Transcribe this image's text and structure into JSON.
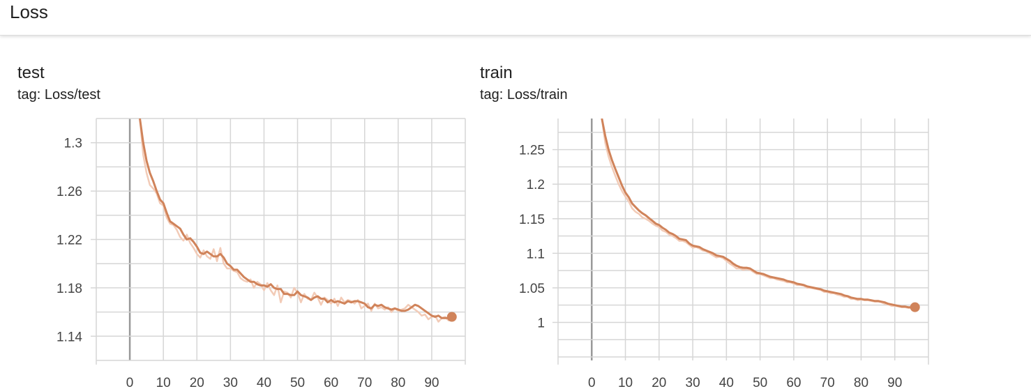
{
  "header": {
    "title": "Loss"
  },
  "colors": {
    "series": "#d0835a",
    "series_raw": "#f2cbb7",
    "grid": "#d6d6d6",
    "zero_line": "#999999"
  },
  "chart_data": [
    {
      "type": "line",
      "title": "test",
      "tag": "tag: Loss/test",
      "xlabel": "",
      "ylabel": "",
      "xlim": [
        -10,
        100
      ],
      "ylim": [
        1.12,
        1.32
      ],
      "x_ticks": [
        0,
        10,
        20,
        30,
        40,
        50,
        60,
        70,
        80,
        90
      ],
      "y_ticks": [
        1.14,
        1.18,
        1.22,
        1.26,
        1.3
      ],
      "y_tick_labels": [
        "1.14",
        "1.18",
        "1.22",
        "1.26",
        "1.3"
      ],
      "grid": true,
      "series": [
        {
          "x": [
            3,
            4,
            5,
            6,
            7,
            8,
            9,
            10,
            11,
            12,
            13,
            14,
            15,
            16,
            17,
            18,
            19,
            20,
            21,
            22,
            23,
            24,
            25,
            26,
            27,
            28,
            29,
            30,
            31,
            32,
            33,
            34,
            35,
            36,
            37,
            38,
            39,
            40,
            41,
            42,
            43,
            44,
            45,
            46,
            47,
            48,
            49,
            50,
            51,
            52,
            53,
            54,
            55,
            56,
            57,
            58,
            59,
            60,
            61,
            62,
            63,
            64,
            65,
            66,
            67,
            68,
            69,
            70,
            71,
            72,
            73,
            74,
            75,
            76,
            77,
            78,
            79,
            80,
            81,
            82,
            83,
            84,
            85,
            86,
            87,
            88,
            89,
            90,
            91,
            92,
            93,
            94,
            95,
            96
          ],
          "smoothed": [
            1.32,
            1.3,
            1.285,
            1.275,
            1.268,
            1.26,
            1.253,
            1.25,
            1.242,
            1.235,
            1.233,
            1.231,
            1.229,
            1.224,
            1.22,
            1.221,
            1.218,
            1.214,
            1.209,
            1.208,
            1.21,
            1.208,
            1.206,
            1.206,
            1.208,
            1.205,
            1.2,
            1.198,
            1.195,
            1.195,
            1.192,
            1.189,
            1.187,
            1.185,
            1.185,
            1.183,
            1.182,
            1.182,
            1.181,
            1.183,
            1.18,
            1.179,
            1.179,
            1.175,
            1.175,
            1.174,
            1.174,
            1.177,
            1.174,
            1.173,
            1.172,
            1.17,
            1.172,
            1.173,
            1.171,
            1.171,
            1.168,
            1.17,
            1.168,
            1.169,
            1.168,
            1.167,
            1.169,
            1.168,
            1.169,
            1.169,
            1.168,
            1.167,
            1.164,
            1.163,
            1.166,
            1.165,
            1.166,
            1.164,
            1.163,
            1.162,
            1.163,
            1.162,
            1.161,
            1.161,
            1.162,
            1.164,
            1.166,
            1.165,
            1.163,
            1.161,
            1.159,
            1.157,
            1.156,
            1.157,
            1.155,
            1.155,
            1.155,
            1.156
          ],
          "raw": [
            1.32,
            1.29,
            1.275,
            1.265,
            1.262,
            1.258,
            1.25,
            1.248,
            1.238,
            1.233,
            1.232,
            1.228,
            1.222,
            1.219,
            1.224,
            1.217,
            1.213,
            1.208,
            1.205,
            1.211,
            1.206,
            1.204,
            1.212,
            1.202,
            1.213,
            1.2,
            1.196,
            1.196,
            1.194,
            1.193,
            1.188,
            1.186,
            1.185,
            1.187,
            1.18,
            1.185,
            1.183,
            1.178,
            1.184,
            1.178,
            1.174,
            1.182,
            1.168,
            1.177,
            1.176,
            1.172,
            1.18,
            1.176,
            1.168,
            1.175,
            1.171,
            1.17,
            1.176,
            1.172,
            1.166,
            1.172,
            1.17,
            1.167,
            1.171,
            1.165,
            1.172,
            1.168,
            1.17,
            1.169,
            1.167,
            1.17,
            1.163,
            1.165,
            1.167,
            1.161,
            1.167,
            1.163,
            1.164,
            1.162,
            1.164,
            1.16,
            1.163,
            1.161,
            1.162,
            1.163,
            1.166,
            1.164,
            1.162,
            1.16,
            1.157,
            1.158,
            1.154,
            1.156,
            1.157,
            1.152,
            1.155,
            1.156,
            1.153,
            1.156
          ]
        }
      ]
    },
    {
      "type": "line",
      "title": "train",
      "tag": "tag: Loss/train",
      "xlabel": "",
      "ylabel": "",
      "xlim": [
        -10,
        100
      ],
      "ylim": [
        0.945,
        1.295
      ],
      "x_ticks": [
        0,
        10,
        20,
        30,
        40,
        50,
        60,
        70,
        80,
        90
      ],
      "y_ticks": [
        1.0,
        1.05,
        1.1,
        1.15,
        1.2,
        1.25
      ],
      "y_tick_labels": [
        "1",
        "1.05",
        "1.1",
        "1.15",
        "1.2",
        "1.25"
      ],
      "grid": true,
      "series": [
        {
          "x": [
            3,
            4,
            5,
            6,
            7,
            8,
            9,
            10,
            11,
            12,
            13,
            14,
            15,
            16,
            17,
            18,
            19,
            20,
            21,
            22,
            23,
            24,
            25,
            26,
            27,
            28,
            29,
            30,
            31,
            32,
            33,
            34,
            35,
            36,
            37,
            38,
            39,
            40,
            41,
            42,
            43,
            44,
            45,
            46,
            47,
            48,
            49,
            50,
            51,
            52,
            53,
            54,
            55,
            56,
            57,
            58,
            59,
            60,
            61,
            62,
            63,
            64,
            65,
            66,
            67,
            68,
            69,
            70,
            71,
            72,
            73,
            74,
            75,
            76,
            77,
            78,
            79,
            80,
            81,
            82,
            83,
            84,
            85,
            86,
            87,
            88,
            89,
            90,
            91,
            92,
            93,
            94,
            95,
            96
          ],
          "smoothed": [
            1.295,
            1.27,
            1.25,
            1.235,
            1.222,
            1.21,
            1.198,
            1.188,
            1.181,
            1.172,
            1.167,
            1.162,
            1.158,
            1.155,
            1.151,
            1.147,
            1.143,
            1.141,
            1.137,
            1.134,
            1.13,
            1.128,
            1.125,
            1.121,
            1.12,
            1.119,
            1.114,
            1.111,
            1.11,
            1.109,
            1.106,
            1.104,
            1.102,
            1.1,
            1.097,
            1.096,
            1.095,
            1.092,
            1.089,
            1.085,
            1.082,
            1.08,
            1.079,
            1.079,
            1.078,
            1.075,
            1.072,
            1.071,
            1.07,
            1.068,
            1.066,
            1.065,
            1.064,
            1.063,
            1.062,
            1.06,
            1.059,
            1.058,
            1.056,
            1.055,
            1.054,
            1.052,
            1.051,
            1.05,
            1.049,
            1.048,
            1.046,
            1.045,
            1.044,
            1.043,
            1.042,
            1.041,
            1.039,
            1.038,
            1.036,
            1.035,
            1.034,
            1.034,
            1.033,
            1.033,
            1.032,
            1.031,
            1.031,
            1.03,
            1.029,
            1.027,
            1.026,
            1.025,
            1.024,
            1.023,
            1.023,
            1.022,
            1.022,
            1.022
          ],
          "raw": [
            1.295,
            1.26,
            1.24,
            1.225,
            1.212,
            1.2,
            1.19,
            1.182,
            1.175,
            1.165,
            1.16,
            1.157,
            1.152,
            1.15,
            1.147,
            1.143,
            1.14,
            1.138,
            1.133,
            1.131,
            1.127,
            1.125,
            1.122,
            1.118,
            1.118,
            1.116,
            1.112,
            1.108,
            1.109,
            1.107,
            1.104,
            1.103,
            1.1,
            1.097,
            1.094,
            1.095,
            1.093,
            1.089,
            1.085,
            1.082,
            1.078,
            1.078,
            1.076,
            1.077,
            1.076,
            1.073,
            1.07,
            1.07,
            1.068,
            1.066,
            1.064,
            1.064,
            1.062,
            1.061,
            1.06,
            1.058,
            1.058,
            1.056,
            1.054,
            1.054,
            1.053,
            1.05,
            1.05,
            1.049,
            1.048,
            1.047,
            1.044,
            1.044,
            1.042,
            1.042,
            1.04,
            1.039,
            1.037,
            1.037,
            1.034,
            1.034,
            1.032,
            1.033,
            1.032,
            1.032,
            1.031,
            1.03,
            1.03,
            1.029,
            1.027,
            1.026,
            1.024,
            1.024,
            1.023,
            1.022,
            1.022,
            1.021,
            1.021,
            1.022
          ]
        }
      ]
    }
  ]
}
